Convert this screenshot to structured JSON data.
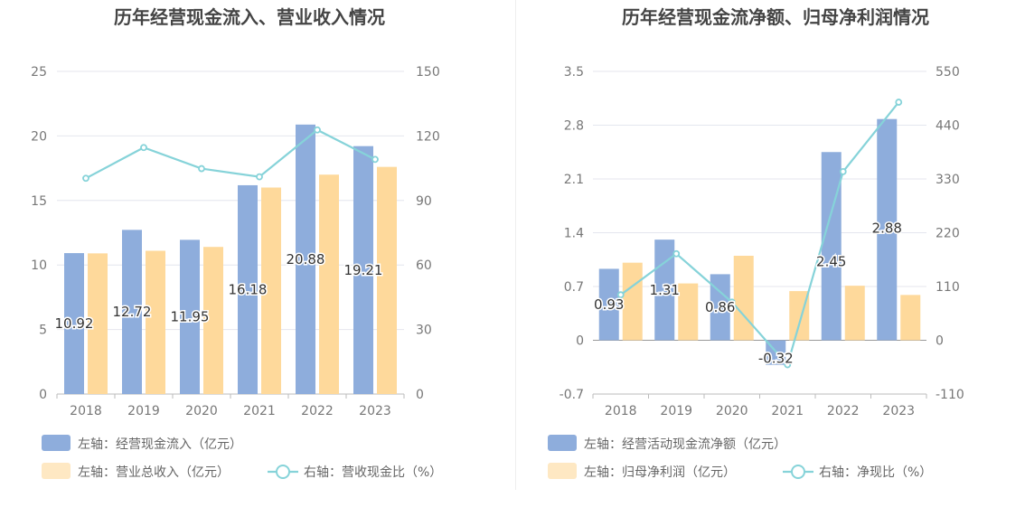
{
  "chart_data": [
    {
      "type": "bar+line",
      "title": "历年经营现金流入、营业收入情况",
      "categories": [
        "2018",
        "2019",
        "2020",
        "2021",
        "2022",
        "2023"
      ],
      "left_axis": {
        "min": 0,
        "max": 25,
        "ticks": [
          "0",
          "5",
          "10",
          "15",
          "20",
          "25"
        ]
      },
      "right_axis": {
        "min": 0,
        "max": 150,
        "ticks": [
          "0",
          "30",
          "60",
          "90",
          "120",
          "150"
        ]
      },
      "series": [
        {
          "name": "左轴：经营现金流入（亿元）",
          "kind": "bar",
          "axis": "left",
          "color": "#8eaddc",
          "values": [
            10.92,
            12.72,
            11.95,
            16.18,
            20.88,
            19.21
          ],
          "labels": [
            "10.92",
            "12.72",
            "11.95",
            "16.18",
            "20.88",
            "19.21"
          ]
        },
        {
          "name": "左轴：营业总收入（亿元）",
          "kind": "bar",
          "axis": "left",
          "color": "#fed99b",
          "values": [
            10.9,
            11.1,
            11.4,
            16.0,
            17.0,
            17.6
          ]
        },
        {
          "name": "右轴：营收现金比（%）",
          "kind": "line",
          "axis": "right",
          "color": "#86d3d9",
          "values": [
            100.3,
            114.6,
            104.8,
            101.0,
            122.8,
            109.1
          ]
        }
      ]
    },
    {
      "type": "bar+line",
      "title": "历年经营现金流净额、归母净利润情况",
      "categories": [
        "2018",
        "2019",
        "2020",
        "2021",
        "2022",
        "2023"
      ],
      "left_axis": {
        "min": -0.7,
        "max": 3.5,
        "ticks": [
          "-0.7",
          "0",
          "0.7",
          "1.4",
          "2.1",
          "2.8",
          "3.5"
        ]
      },
      "right_axis": {
        "min": -110,
        "max": 550,
        "ticks": [
          "-110",
          "0",
          "110",
          "220",
          "330",
          "440",
          "550"
        ]
      },
      "series": [
        {
          "name": "左轴：经营活动现金流净额（亿元）",
          "kind": "bar",
          "axis": "left",
          "color": "#8eaddc",
          "values": [
            0.93,
            1.31,
            0.86,
            -0.32,
            2.45,
            2.88
          ],
          "labels": [
            "0.93",
            "1.31",
            "0.86",
            "-0.32",
            "2.45",
            "2.88"
          ]
        },
        {
          "name": "左轴：归母净利润（亿元）",
          "kind": "bar",
          "axis": "left",
          "color": "#fed99b",
          "values": [
            1.01,
            0.74,
            1.1,
            0.64,
            0.71,
            0.59
          ]
        },
        {
          "name": "右轴：净现比（%）",
          "kind": "line",
          "axis": "right",
          "color": "#86d3d9",
          "values": [
            93,
            177,
            78,
            -50,
            345,
            487
          ]
        }
      ]
    }
  ]
}
